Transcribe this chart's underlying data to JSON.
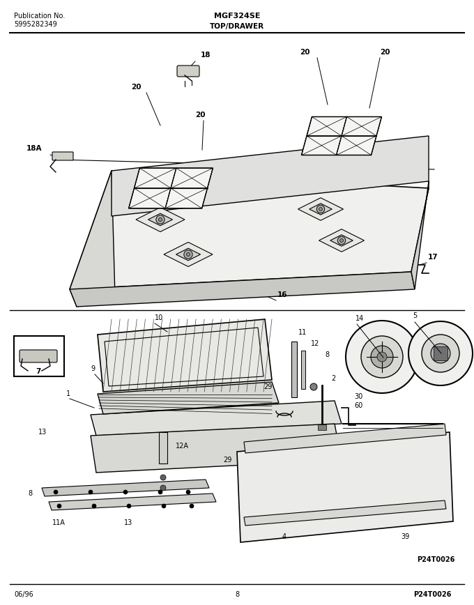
{
  "title_left_line1": "Publication No.",
  "title_left_line2": "5995282349",
  "title_center": "MGF324SE",
  "title_sub": "TOP/DRAWER",
  "footer_left": "06/96",
  "footer_center": "8",
  "footer_right": "P24T0026",
  "bg_color": "#ffffff",
  "text_color": "#000000",
  "line_color": "#000000",
  "fig_width": 6.8,
  "fig_height": 8.68,
  "dpi": 100
}
